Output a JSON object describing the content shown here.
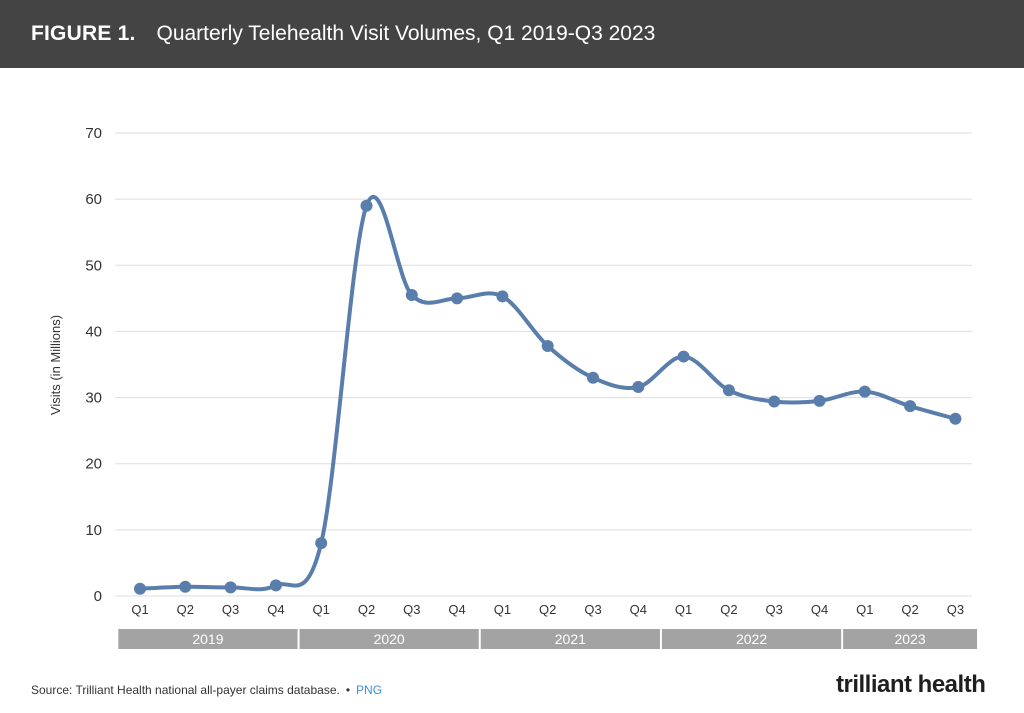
{
  "header": {
    "figure_label": "FIGURE 1.",
    "title": "Quarterly Telehealth Visit Volumes, Q1 2019-Q3 2023"
  },
  "footer": {
    "source": "Source: Trilliant Health national all-payer claims database.",
    "separator": "•",
    "png_link": "PNG",
    "logo": "trilliant health"
  },
  "colors": {
    "header_bg": "#444444",
    "line": "#5a7eab",
    "year_band": "#a3a3a3",
    "grid": "#dddddd"
  },
  "chart_data": {
    "type": "line",
    "ylabel": "Visits (in Millions)",
    "ylim": [
      0,
      70
    ],
    "yticks": [
      0,
      10,
      20,
      30,
      40,
      50,
      60,
      70
    ],
    "grid": true,
    "categories": [
      "Q1",
      "Q2",
      "Q3",
      "Q4",
      "Q1",
      "Q2",
      "Q3",
      "Q4",
      "Q1",
      "Q2",
      "Q3",
      "Q4",
      "Q1",
      "Q2",
      "Q3",
      "Q4",
      "Q1",
      "Q2",
      "Q3"
    ],
    "years": [
      {
        "label": "2019",
        "quarters": 4
      },
      {
        "label": "2020",
        "quarters": 4
      },
      {
        "label": "2021",
        "quarters": 4
      },
      {
        "label": "2022",
        "quarters": 4
      },
      {
        "label": "2023",
        "quarters": 3
      }
    ],
    "series": [
      {
        "values": [
          1.1,
          1.4,
          1.3,
          1.6,
          8.0,
          59.0,
          45.5,
          45.0,
          45.3,
          37.8,
          33.0,
          31.6,
          36.2,
          31.1,
          29.4,
          29.5,
          30.9,
          28.7,
          26.8
        ]
      }
    ]
  }
}
